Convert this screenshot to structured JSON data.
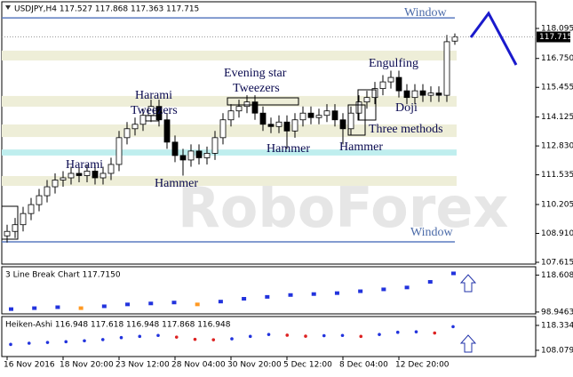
{
  "chart_data": {
    "type": "candlestick",
    "title": "USDJPY,H4  117.527 117.868 117.363 117.715",
    "watermark": "RoboForex",
    "categories": [
      "16 Nov 2016",
      null,
      null,
      null,
      null,
      null,
      null,
      "18 Nov 20:00",
      null,
      null,
      null,
      null,
      null,
      null,
      "23 Nov 12:00",
      null,
      null,
      null,
      null,
      null,
      null,
      "28 Nov 04:00",
      null,
      null,
      null,
      null,
      null,
      null,
      "30 Nov 20:00",
      null,
      null,
      null,
      null,
      null,
      null,
      "5 Dec 12:00",
      null,
      null,
      null,
      null,
      null,
      null,
      "8 Dec 04:00",
      null,
      null,
      null,
      null,
      null,
      null,
      "12 Dec 20:00",
      null,
      null,
      null,
      null,
      null,
      null,
      null
    ],
    "open": [
      108.8,
      109.0,
      109.3,
      109.8,
      110.2,
      110.6,
      111.0,
      111.3,
      111.4,
      111.6,
      111.5,
      111.7,
      111.4,
      111.6,
      112.0,
      113.2,
      113.6,
      113.8,
      114.2,
      114.6,
      114.0,
      113.0,
      112.4,
      112.2,
      112.6,
      112.3,
      112.5,
      113.2,
      114.0,
      114.4,
      114.6,
      114.8,
      114.3,
      113.8,
      113.7,
      113.9,
      113.5,
      114.0,
      114.3,
      114.1,
      114.2,
      114.4,
      114.0,
      113.6,
      114.3,
      114.8,
      115.0,
      115.4,
      115.7,
      115.9,
      115.3,
      115.0,
      115.3,
      115.1,
      115.2,
      115.1,
      117.527
    ],
    "high": [
      109.3,
      109.6,
      110.1,
      110.5,
      110.9,
      111.3,
      111.6,
      111.7,
      111.9,
      111.9,
      112.0,
      112.0,
      111.9,
      112.3,
      113.5,
      113.9,
      114.1,
      114.5,
      114.9,
      114.9,
      114.3,
      113.3,
      112.7,
      112.9,
      112.9,
      112.8,
      113.5,
      114.3,
      114.7,
      114.9,
      115.1,
      115.1,
      114.6,
      114.1,
      114.2,
      114.2,
      114.3,
      114.6,
      114.6,
      114.5,
      114.7,
      114.7,
      114.3,
      114.6,
      115.1,
      115.3,
      115.7,
      116.0,
      116.2,
      116.2,
      115.6,
      115.6,
      115.6,
      115.5,
      115.5,
      117.8,
      117.868
    ],
    "low": [
      108.5,
      108.7,
      109.0,
      109.5,
      109.9,
      110.3,
      110.7,
      111.0,
      111.1,
      111.2,
      111.2,
      111.1,
      111.1,
      111.3,
      111.7,
      112.9,
      113.3,
      113.5,
      113.9,
      113.7,
      112.7,
      112.1,
      111.5,
      111.9,
      112.0,
      112.0,
      112.2,
      112.9,
      113.7,
      114.1,
      114.3,
      114.0,
      113.5,
      113.4,
      113.4,
      112.7,
      113.2,
      113.7,
      113.8,
      113.8,
      113.9,
      113.7,
      112.9,
      113.3,
      114.0,
      114.5,
      114.7,
      115.1,
      115.4,
      115.0,
      114.7,
      114.7,
      114.8,
      114.8,
      114.8,
      114.8,
      117.363
    ],
    "close": [
      109.0,
      109.3,
      109.8,
      110.2,
      110.6,
      111.0,
      111.3,
      111.4,
      111.6,
      111.5,
      111.7,
      111.4,
      111.6,
      112.0,
      113.2,
      113.6,
      113.8,
      114.2,
      114.6,
      114.0,
      113.0,
      112.4,
      112.2,
      112.6,
      112.3,
      112.5,
      113.2,
      114.0,
      114.4,
      114.6,
      114.8,
      114.3,
      113.8,
      113.7,
      113.9,
      113.5,
      114.0,
      114.3,
      114.1,
      114.2,
      114.4,
      114.0,
      113.6,
      114.3,
      114.8,
      115.0,
      115.4,
      115.7,
      115.9,
      115.3,
      115.0,
      115.3,
      115.1,
      115.2,
      115.1,
      117.5,
      117.715
    ],
    "last_price": 117.715,
    "ylim": [
      107.535,
      119.25
    ],
    "yticks": [
      118.095,
      {
        "value": 116.75,
        "label": "116.750"
      },
      115.455,
      114.125,
      {
        "value": 112.83,
        "label": "112.830"
      },
      111.535,
      110.205,
      {
        "value": 108.91,
        "label": "108.910"
      },
      107.615
    ],
    "zones": [
      {
        "low": 116.66,
        "high": 117.1,
        "color": "#eeeed8"
      },
      {
        "low": 114.59,
        "high": 115.07,
        "color": "#eeeed8"
      },
      {
        "low": 113.23,
        "high": 113.79,
        "color": "#eeeed8"
      },
      {
        "low": 112.4,
        "high": 112.67,
        "color": "#bfeeee"
      },
      {
        "low": 111.04,
        "high": 111.48,
        "color": "#eeeed8"
      }
    ],
    "window_levels": [
      118.57,
      108.53
    ],
    "annotations": [
      "Window",
      "Window",
      "Engulfing",
      "Doji",
      "Three methods",
      "Hammer",
      "Hammer",
      "Evening star",
      "Tweezers",
      "Harami",
      "Tweezers",
      "Harami",
      "Hammer"
    ],
    "panels": [
      {
        "type": "line_break",
        "title": "3 Line Break Chart 117.7150",
        "ylim": [
          97.96,
          123.03
        ],
        "yticks": [
          118.6088,
          98.9463
        ],
        "values": [
          100.5,
          101,
          101.5,
          101,
          102,
          103,
          103.5,
          104,
          103,
          104.5,
          106,
          107,
          108,
          108.5,
          109,
          110,
          111,
          112,
          115,
          119.5
        ]
      },
      {
        "type": "heiken_ashi",
        "title": "Heiken-Ashi 116.948 117.618 116.948 117.868 116.948",
        "ylim": [
          105.5,
          121.99
        ],
        "yticks": [
          118.334,
          108.079
        ],
        "values": [
          110.5,
          111,
          111.3,
          111.6,
          112,
          112.5,
          113.3,
          113.8,
          114.2,
          113.5,
          112.6,
          112.4,
          112.8,
          113.8,
          114.6,
          114.3,
          113.9,
          114.1,
          114.2,
          113.8,
          114.6,
          115.5,
          115.7,
          115.2,
          117.8
        ]
      }
    ]
  }
}
